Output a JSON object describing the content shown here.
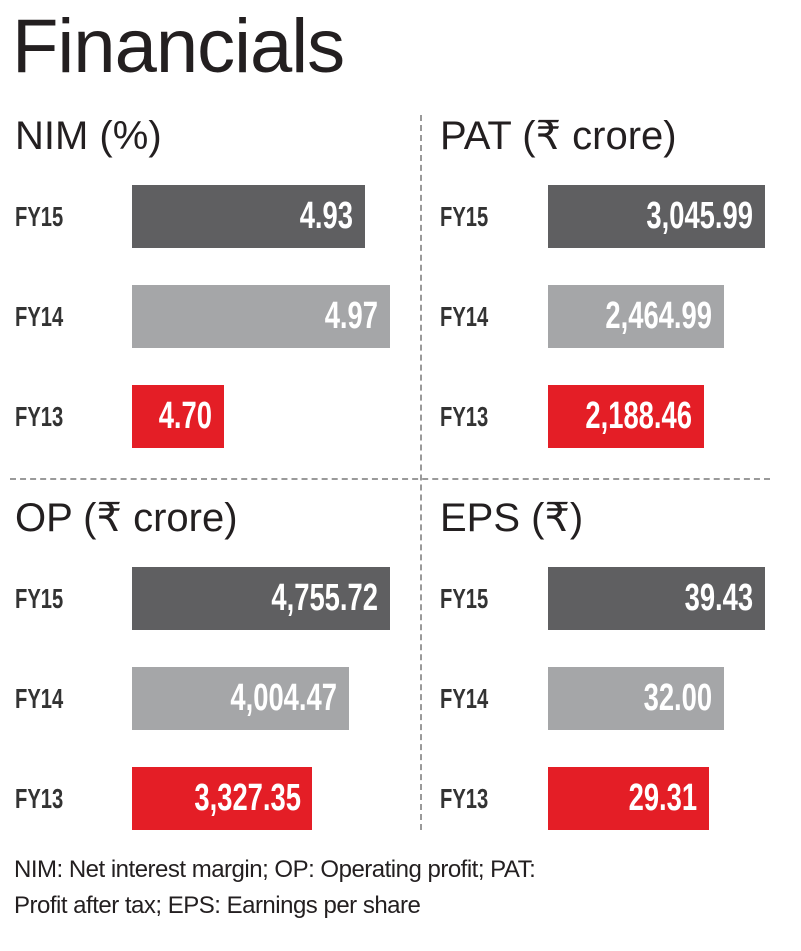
{
  "title": "Financials",
  "footnote_line1": "NIM: Net interest margin; OP: Operating profit; PAT:",
  "footnote_line2": "Profit after tax; EPS: Earnings per share",
  "colors": {
    "FY15": "#5f5f61",
    "FY14": "#a5a6a8",
    "FY13": "#e41e26"
  },
  "chart_data": [
    {
      "type": "bar",
      "title": "NIM (%)",
      "categories": [
        "FY15",
        "FY14",
        "FY13"
      ],
      "values": [
        4.93,
        4.97,
        4.7
      ],
      "labels": [
        "4.93",
        "4.97",
        "4.70"
      ],
      "xlim": [
        4.55,
        5.0
      ]
    },
    {
      "type": "bar",
      "title": "PAT (₹ crore)",
      "categories": [
        "FY15",
        "FY14",
        "FY13"
      ],
      "values": [
        3045.99,
        2464.99,
        2188.46
      ],
      "labels": [
        "3,045.99",
        "2,464.99",
        "2,188.46"
      ],
      "xlim": [
        0,
        3046
      ]
    },
    {
      "type": "bar",
      "title": "OP (₹ crore)",
      "categories": [
        "FY15",
        "FY14",
        "FY13"
      ],
      "values": [
        4755.72,
        4004.47,
        3327.35
      ],
      "labels": [
        "4,755.72",
        "4,004.47",
        "3,327.35"
      ],
      "xlim": [
        0,
        4756
      ]
    },
    {
      "type": "bar",
      "title": "EPS (₹)",
      "categories": [
        "FY15",
        "FY14",
        "FY13"
      ],
      "values": [
        39.43,
        32.0,
        29.31
      ],
      "labels": [
        "39.43",
        "32.00",
        "29.31"
      ],
      "xlim": [
        0,
        39.43
      ]
    }
  ]
}
